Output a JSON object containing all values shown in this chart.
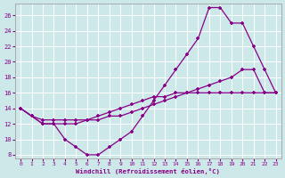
{
  "xlabel": "Windchill (Refroidissement éolien,°C)",
  "bg_color": "#cce8e8",
  "grid_color": "#ffffff",
  "line_color": "#880088",
  "xlim_min": -0.5,
  "xlim_max": 23.5,
  "ylim_min": 7.5,
  "ylim_max": 27.5,
  "xticks": [
    0,
    1,
    2,
    3,
    4,
    5,
    6,
    7,
    8,
    9,
    10,
    11,
    12,
    13,
    14,
    15,
    16,
    17,
    18,
    19,
    20,
    21,
    22,
    23
  ],
  "yticks": [
    8,
    10,
    12,
    14,
    16,
    18,
    20,
    22,
    24,
    26
  ],
  "line1_x": [
    0,
    1,
    2,
    3,
    4,
    5,
    6,
    7,
    8,
    9,
    10,
    11,
    12,
    13,
    14,
    15,
    16,
    17,
    18,
    19,
    20,
    21,
    22,
    23
  ],
  "line1_y": [
    14,
    13,
    12,
    12,
    10,
    9,
    8,
    8,
    9,
    10,
    11,
    13,
    15,
    17,
    19,
    21,
    23,
    27,
    27,
    25,
    25,
    22,
    19,
    16
  ],
  "line2_x": [
    0,
    1,
    2,
    3,
    4,
    5,
    6,
    7,
    8,
    9,
    10,
    11,
    12,
    13,
    14,
    15,
    16,
    17,
    18,
    19,
    20,
    21,
    22,
    23
  ],
  "line2_y": [
    14,
    13,
    12.5,
    12.5,
    12.5,
    12.5,
    12.5,
    12.5,
    13,
    13,
    13.5,
    14,
    14.5,
    15,
    15.5,
    16,
    16.5,
    17,
    17.5,
    18,
    19,
    19,
    16,
    16
  ],
  "line3_x": [
    0,
    1,
    2,
    3,
    4,
    5,
    6,
    7,
    8,
    9,
    10,
    11,
    12,
    13,
    14,
    15,
    16,
    17,
    18,
    19,
    20,
    21,
    22,
    23
  ],
  "line3_y": [
    14,
    13,
    12,
    12,
    12,
    12,
    12.5,
    13,
    13.5,
    14,
    14.5,
    15,
    15.5,
    15.5,
    16,
    16,
    16,
    16,
    16,
    16,
    16,
    16,
    16,
    16
  ]
}
